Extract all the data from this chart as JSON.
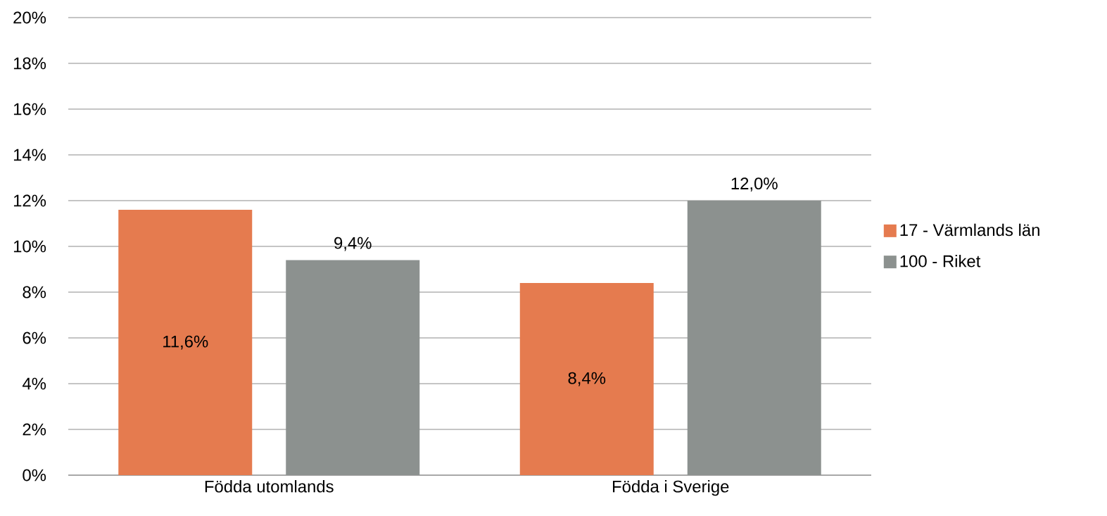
{
  "chart_data": {
    "type": "bar",
    "categories": [
      "Födda utomlands",
      "Födda i Sverige"
    ],
    "series": [
      {
        "name": "17 - Värmlands län",
        "color": "#e57b4f",
        "values": [
          11.6,
          8.4
        ],
        "value_labels": [
          "11,6%",
          "8,4%"
        ]
      },
      {
        "name": "100 - Riket",
        "color": "#8c918f",
        "values": [
          9.4,
          12.0
        ],
        "value_labels": [
          "9,4%",
          "12,0%"
        ]
      }
    ],
    "ylim": [
      0,
      20
    ],
    "yticks": [
      {
        "value": 0,
        "label": "0%"
      },
      {
        "value": 2,
        "label": "2%"
      },
      {
        "value": 4,
        "label": "4%"
      },
      {
        "value": 6,
        "label": "6%"
      },
      {
        "value": 8,
        "label": "8%"
      },
      {
        "value": 10,
        "label": "10%"
      },
      {
        "value": 12,
        "label": "12%"
      },
      {
        "value": 14,
        "label": "14%"
      },
      {
        "value": 16,
        "label": "16%"
      },
      {
        "value": 18,
        "label": "18%"
      },
      {
        "value": 20,
        "label": "20%"
      }
    ],
    "grid": "y",
    "legend": "right"
  }
}
